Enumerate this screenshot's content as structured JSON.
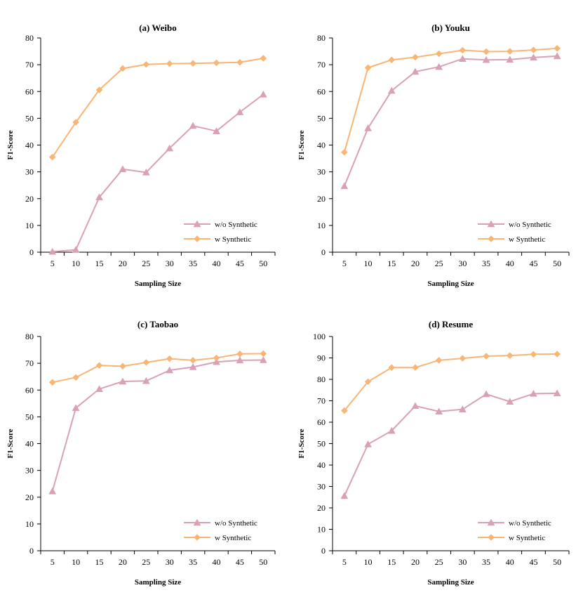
{
  "colors": {
    "wo_synthetic": "#d9a0b8",
    "w_synthetic": "#f9b574",
    "axis": "#000000"
  },
  "chart_data": [
    {
      "type": "line",
      "title": "(a) Weibo",
      "xlabel": "Sampling Size",
      "ylabel": "F1-Score",
      "x": [
        5,
        10,
        15,
        20,
        25,
        30,
        35,
        40,
        45,
        50
      ],
      "ylim": [
        0,
        80
      ],
      "yticks": [
        0,
        10,
        20,
        30,
        40,
        50,
        60,
        70,
        80
      ],
      "grid": false,
      "legend_position": "bottom-right",
      "series": [
        {
          "name": "w/o Synthetic",
          "marker": "triangle",
          "values": [
            0.2,
            0.9,
            20.5,
            31.0,
            29.8,
            38.8,
            47.2,
            45.2,
            52.3,
            58.9
          ]
        },
        {
          "name": "w Synthetic",
          "marker": "diamond",
          "values": [
            35.5,
            48.5,
            60.6,
            68.6,
            70.1,
            70.4,
            70.5,
            70.7,
            70.9,
            72.4
          ]
        }
      ]
    },
    {
      "type": "line",
      "title": "(b) Youku",
      "xlabel": "Sampling Size",
      "ylabel": "F1-Score",
      "x": [
        5,
        10,
        15,
        20,
        25,
        30,
        35,
        40,
        45,
        50
      ],
      "ylim": [
        0,
        80
      ],
      "yticks": [
        0,
        10,
        20,
        30,
        40,
        50,
        60,
        70,
        80
      ],
      "grid": false,
      "legend_position": "bottom-right",
      "series": [
        {
          "name": "w/o Synthetic",
          "marker": "triangle",
          "values": [
            24.7,
            46.3,
            60.3,
            67.4,
            69.2,
            72.2,
            71.8,
            71.9,
            72.7,
            73.2
          ]
        },
        {
          "name": "w Synthetic",
          "marker": "diamond",
          "values": [
            37.3,
            68.9,
            71.8,
            72.8,
            74.1,
            75.4,
            74.9,
            75.0,
            75.5,
            76.1
          ]
        }
      ]
    },
    {
      "type": "line",
      "title": "(c) Taobao",
      "xlabel": "Sampling Size",
      "ylabel": "F1-Score",
      "x": [
        5,
        10,
        15,
        20,
        25,
        30,
        35,
        40,
        45,
        50
      ],
      "ylim": [
        0,
        80
      ],
      "yticks": [
        0,
        10,
        20,
        30,
        40,
        50,
        60,
        70,
        80
      ],
      "grid": false,
      "legend_position": "bottom-right",
      "series": [
        {
          "name": "w/o Synthetic",
          "marker": "triangle",
          "values": [
            22.2,
            53.3,
            60.4,
            63.2,
            63.4,
            67.4,
            68.6,
            70.5,
            71.1,
            71.2
          ]
        },
        {
          "name": "w Synthetic",
          "marker": "diamond",
          "values": [
            62.9,
            64.7,
            69.2,
            68.9,
            70.3,
            71.7,
            71.1,
            72.0,
            73.5,
            73.6
          ]
        }
      ]
    },
    {
      "type": "line",
      "title": "(d) Resume",
      "xlabel": "Sampling Size",
      "ylabel": "F1-Score",
      "x": [
        5,
        10,
        15,
        20,
        25,
        30,
        35,
        40,
        45,
        50
      ],
      "ylim": [
        0,
        100
      ],
      "yticks": [
        0,
        10,
        20,
        30,
        40,
        50,
        60,
        70,
        80,
        90,
        100
      ],
      "grid": false,
      "legend_position": "bottom-right",
      "series": [
        {
          "name": "w/o Synthetic",
          "marker": "triangle",
          "values": [
            25.6,
            49.7,
            56.0,
            67.6,
            65.0,
            66.0,
            73.1,
            69.6,
            73.3,
            73.5
          ]
        },
        {
          "name": "w Synthetic",
          "marker": "diamond",
          "values": [
            65.4,
            78.9,
            85.5,
            85.5,
            88.9,
            89.8,
            90.8,
            91.1,
            91.7,
            91.8
          ]
        }
      ]
    }
  ]
}
